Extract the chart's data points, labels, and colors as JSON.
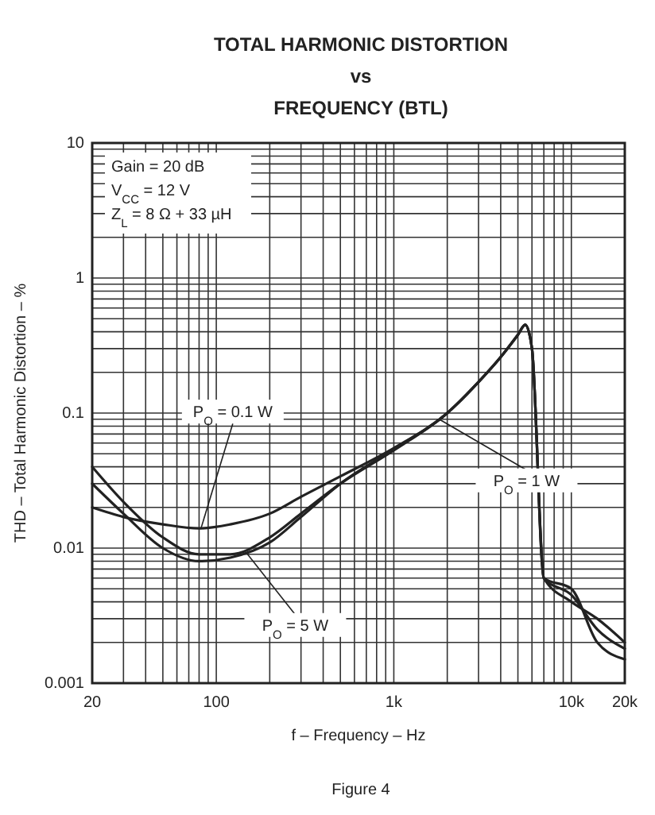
{
  "chart_data": {
    "type": "line",
    "title": "TOTAL HARMONIC DISTORTION\nvs\nFREQUENCY (BTL)",
    "xlabel": "f – Frequency – Hz",
    "ylabel": "THD – Total Harmonic Distortion – %",
    "log": "xy",
    "grid": true,
    "line_style": "solid",
    "marker": "none",
    "x": [
      20,
      30,
      50,
      80,
      120,
      200,
      300,
      500,
      1000,
      2000,
      3000,
      4000,
      5000,
      5500,
      6000,
      7000,
      10000,
      14000,
      20000
    ],
    "xlim": [
      20,
      20000
    ],
    "xticks": [
      20,
      100,
      {
        "value": 1000,
        "label": "1k"
      },
      {
        "value": 10000,
        "label": "10k"
      },
      {
        "value": 20000,
        "label": "20k"
      }
    ],
    "ylim": [
      0.001,
      10
    ],
    "yticks": [
      0.001,
      0.01,
      0.1,
      1,
      10
    ],
    "series": [
      {
        "color": "#222222",
        "values": [
          0.02,
          0.017,
          0.015,
          0.014,
          0.015,
          0.018,
          0.024,
          0.034,
          0.055,
          0.1,
          0.17,
          0.26,
          0.38,
          0.45,
          0.3,
          0.006,
          0.005,
          0.002,
          0.0015
        ]
      },
      {
        "color": "#222222",
        "values": [
          0.04,
          0.022,
          0.012,
          0.009,
          0.009,
          0.012,
          0.018,
          0.03,
          0.053,
          0.1,
          0.17,
          0.26,
          0.38,
          0.45,
          0.3,
          0.006,
          0.004,
          0.003,
          0.002
        ]
      },
      {
        "color": "#222222",
        "values": [
          0.03,
          0.018,
          0.01,
          0.008,
          0.0085,
          0.011,
          0.017,
          0.03,
          0.054,
          0.1,
          0.17,
          0.26,
          0.38,
          0.45,
          0.3,
          0.006,
          0.0045,
          0.0025,
          0.0018
        ]
      }
    ],
    "annotations": [
      {
        "text": "P$_{O}$ = 0.1 W",
        "x": 82,
        "y": 0.014
      },
      {
        "text": "P$_{O}$ = 5 W",
        "x": 150,
        "y": 0.009
      },
      {
        "text": "P$_{O}$ = 1 W",
        "x": 1800,
        "y": 0.09
      },
      "Gain = 20 dB",
      "V$_{CC}$ = 12 V",
      "Z$_{L}$ = 8 Ω + 33 µH",
      "Figure 4"
    ]
  }
}
